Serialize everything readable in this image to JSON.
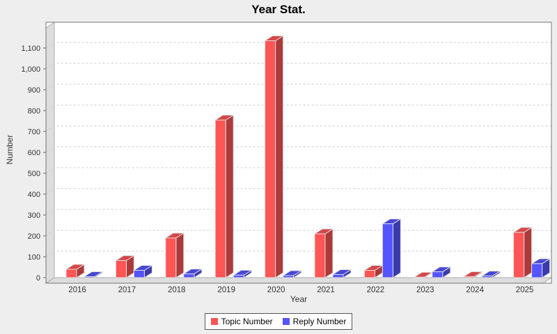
{
  "title": "Year Stat.",
  "axes": {
    "x_label": "Year",
    "y_label": "Number"
  },
  "legend": {
    "items": [
      "Topic Number",
      "Reply Number"
    ]
  },
  "chart_data": {
    "type": "bar",
    "style": "3d-bar",
    "title": "Year Stat.",
    "xlabel": "Year",
    "ylabel": "Number",
    "categories": [
      "2016",
      "2017",
      "2018",
      "2019",
      "2020",
      "2021",
      "2022",
      "2023",
      "2024",
      "2025"
    ],
    "series": [
      {
        "name": "Topic Number",
        "color": "#FF5555",
        "values": [
          40,
          82,
          190,
          755,
          1135,
          210,
          35,
          2,
          5,
          217
        ]
      },
      {
        "name": "Reply Number",
        "color": "#5555FF",
        "values": [
          5,
          35,
          18,
          12,
          10,
          15,
          258,
          28,
          8,
          67
        ]
      }
    ],
    "ylim": [
      0,
      1220
    ],
    "ytick_interval": 100,
    "ytick_labels": [
      "0",
      "100",
      "200",
      "300",
      "400",
      "500",
      "600",
      "700",
      "800",
      "900",
      "1,000",
      "1,100"
    ],
    "grid": true,
    "grid_style": "dashed",
    "legend_position": "bottom"
  },
  "colors": {
    "background": "#EEEEEE",
    "plot_background": "#FFFFFF",
    "wall": "#DDDDDD",
    "wall_edge": "#AAAAAA",
    "plot_border": "#777777",
    "gridline": "#CCCCCC",
    "tick_text": "#333333",
    "bar_outline": "#DDDDDD"
  }
}
